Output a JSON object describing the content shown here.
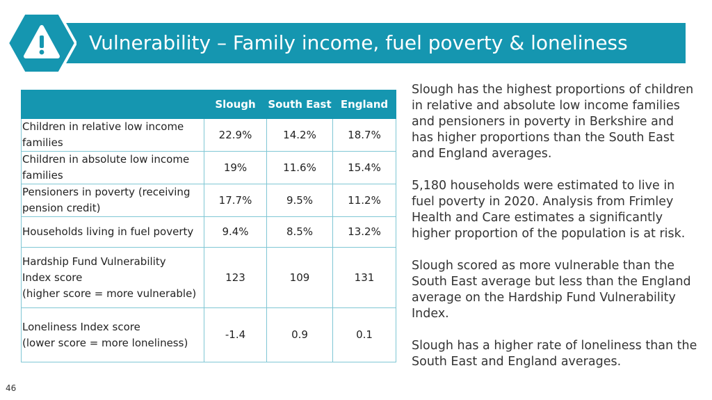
{
  "header": {
    "title": "Vulnerability – Family income, fuel poverty & loneliness",
    "icon": "warning-icon",
    "color": "#1596b0"
  },
  "table": {
    "columns": [
      "",
      "Slough",
      "South East",
      "England"
    ],
    "rows": [
      {
        "label": "Children in relative low income families",
        "values": [
          "22.9%",
          "14.2%",
          "18.7%"
        ]
      },
      {
        "label": "Children in absolute low income families",
        "values": [
          "19%",
          "11.6%",
          "15.4%"
        ]
      },
      {
        "label": "Pensioners in poverty (receiving pension credit)",
        "values": [
          "17.7%",
          "9.5%",
          "11.2%"
        ]
      },
      {
        "label": "Households living in fuel poverty",
        "values": [
          "9.4%",
          "8.5%",
          "13.2%"
        ]
      },
      {
        "label_lines": [
          "Hardship Fund Vulnerability",
          "Index score",
          "(higher score = more vulnerable)"
        ],
        "values": [
          "123",
          "109",
          "131"
        ]
      },
      {
        "label_lines": [
          "Loneliness Index score",
          "(lower score = more loneliness)"
        ],
        "values": [
          "-1.4",
          "0.9",
          "0.1"
        ]
      }
    ]
  },
  "side_text": {
    "paragraphs": [
      "Slough has the highest proportions of children in relative and absolute low income families and pensioners in poverty in Berkshire and has higher proportions than the South East and England averages.",
      "5,180 households were estimated to live in fuel poverty in 2020. Analysis from Frimley Health and Care estimates a significantly higher proportion of the population is at risk.",
      "Slough scored as more vulnerable than the South East average but less than the England average on the Hardship Fund Vulnerability Index.",
      "Slough has a higher rate of loneliness than the South East and England averages."
    ]
  },
  "footer": {
    "page_number": "46"
  }
}
